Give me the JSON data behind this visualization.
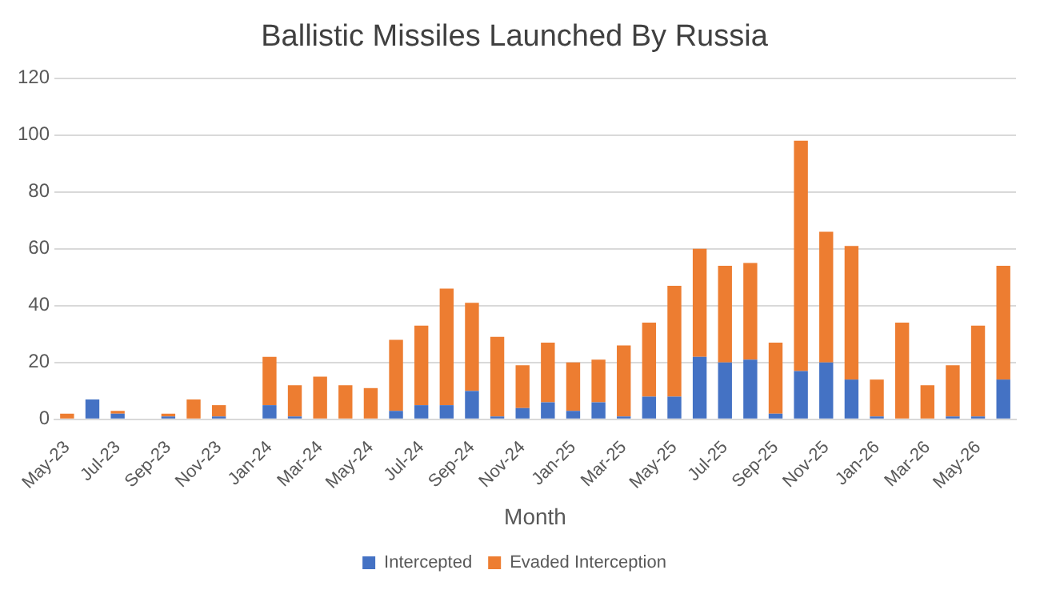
{
  "chart_data": {
    "type": "bar",
    "title": "Ballistic Missiles Launched By Russia",
    "xlabel": "Month",
    "categories": [
      "May-23",
      null,
      "Jul-23",
      null,
      "Sep-23",
      null,
      "Nov-23",
      null,
      "Jan-24",
      null,
      "Mar-24",
      null,
      "May-24",
      null,
      "Jul-24",
      null,
      "Sep-24",
      null,
      "Nov-24",
      null,
      "Jan-25",
      null,
      "Mar-25",
      null,
      "May-25",
      null,
      "Jul-25",
      null,
      "Sep-25",
      null,
      "Nov-25",
      null,
      "Jan-26",
      null,
      "Mar-26",
      null,
      "May-26",
      null
    ],
    "series": [
      {
        "name": "Intercepted",
        "color": "#4472c4",
        "values": [
          0,
          7,
          2,
          0,
          1,
          0,
          1,
          0,
          5,
          1,
          0,
          0,
          0,
          3,
          5,
          5,
          10,
          1,
          4,
          6,
          3,
          6,
          1,
          8,
          8,
          22,
          20,
          21,
          2,
          17,
          20,
          14,
          1,
          0,
          0,
          1,
          1,
          14
        ]
      },
      {
        "name": "Evaded Interception",
        "color": "#ed7d31",
        "values": [
          2,
          0,
          1,
          0,
          1,
          7,
          4,
          0,
          17,
          11,
          15,
          12,
          11,
          25,
          28,
          41,
          31,
          28,
          15,
          21,
          17,
          15,
          25,
          26,
          39,
          38,
          34,
          34,
          25,
          81,
          46,
          47,
          13,
          34,
          12,
          18,
          32,
          40
        ]
      }
    ],
    "stacked": true,
    "ylim": [
      0,
      120
    ],
    "yticks": [
      0,
      20,
      40,
      60,
      80,
      100,
      120
    ],
    "grid": "y",
    "legend": "bottom"
  }
}
